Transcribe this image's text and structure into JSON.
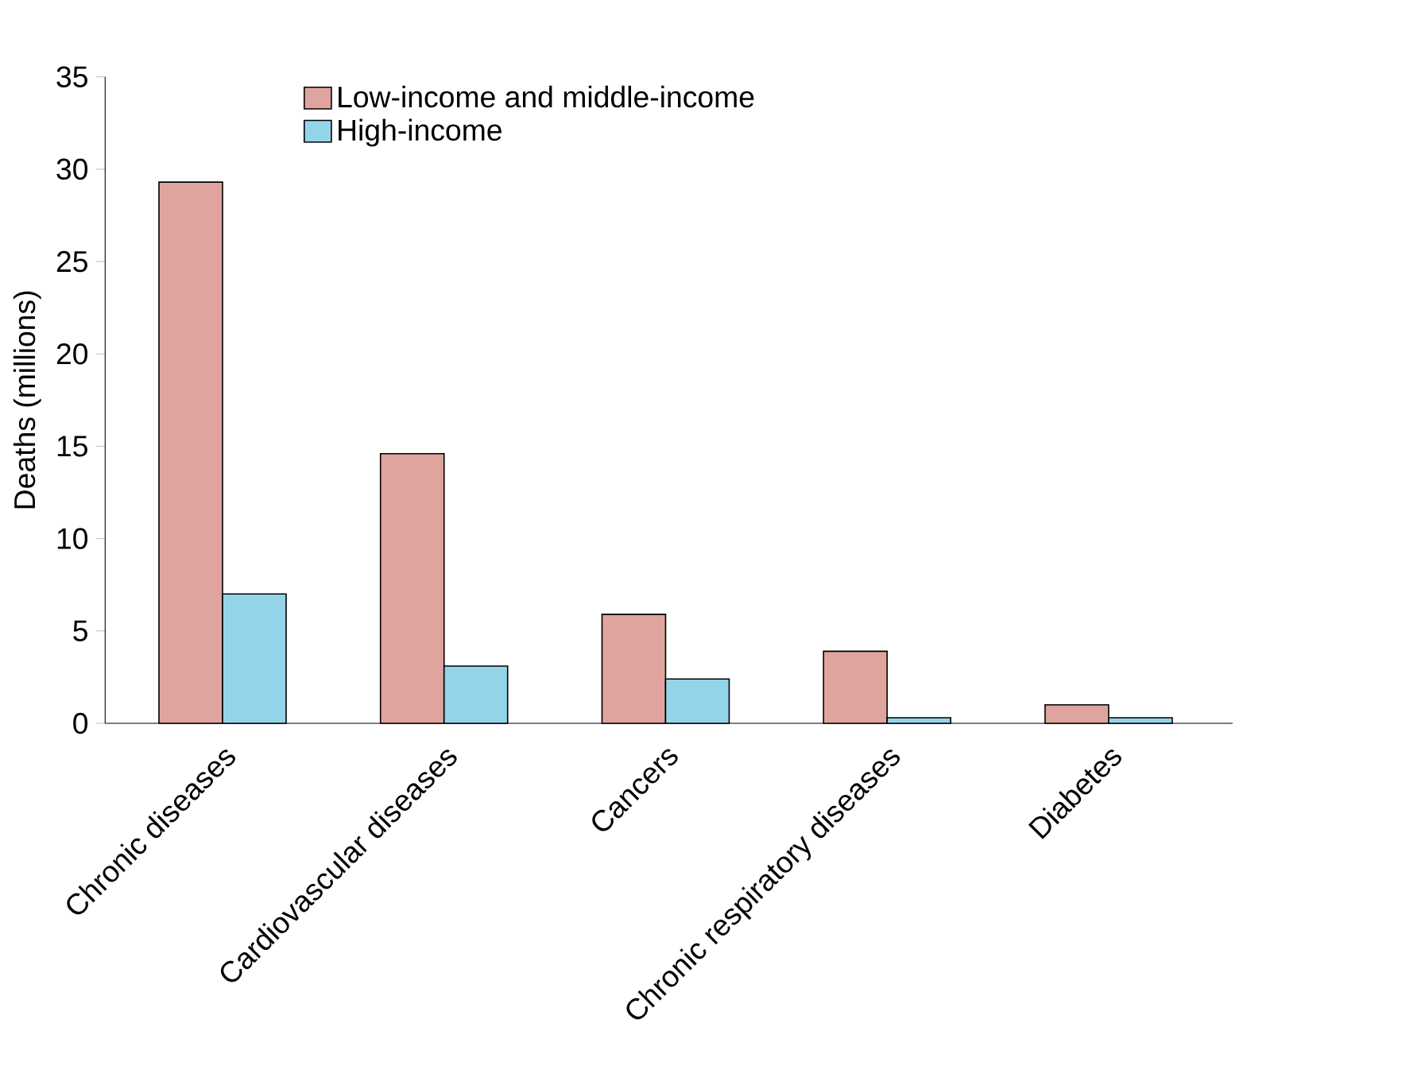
{
  "chart_data": {
    "type": "bar",
    "ylabel": "Deaths (millions)",
    "categories": [
      "Chronic diseases",
      "Cardiovascular diseases",
      "Cancers",
      "Chronic respiratory diseases",
      "Diabetes"
    ],
    "series": [
      {
        "name": "Low-income and middle-income",
        "color": "#e0a49e",
        "values": [
          29.3,
          14.6,
          5.9,
          3.9,
          1.0
        ]
      },
      {
        "name": "High-income",
        "color": "#94d4e8",
        "values": [
          7.0,
          3.1,
          2.4,
          0.3,
          0.3
        ]
      }
    ],
    "ylim": [
      0,
      35
    ],
    "yticks": [
      0,
      5,
      10,
      15,
      20,
      25,
      30,
      35
    ],
    "legend": "top",
    "grid": false
  }
}
